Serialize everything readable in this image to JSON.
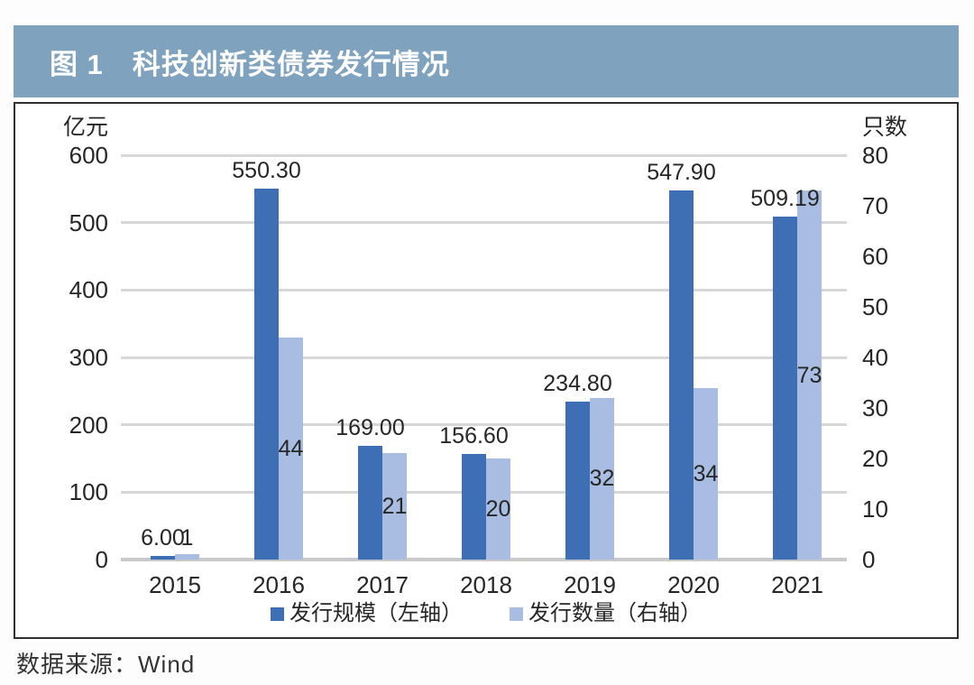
{
  "title": "图 1　科技创新类债券发行情况",
  "source": "数据来源：Wind",
  "colors": {
    "title_bar_bg": "#7FA3BF",
    "title_text": "#ffffff",
    "box_border": "#2f2f2f",
    "gridline": "#d7d7d7",
    "baseline": "#c9c9c9",
    "text": "#262626",
    "scale_bar": "#3E6FB4",
    "count_bar": "#A9BCE1"
  },
  "chart_data": {
    "type": "bar",
    "title": "图 1　科技创新类债券发行情况",
    "categories": [
      "2015",
      "2016",
      "2017",
      "2018",
      "2019",
      "2020",
      "2021"
    ],
    "series": [
      {
        "name": "发行规模（左轴）",
        "axis": "left",
        "values": [
          6.0,
          550.3,
          169.0,
          156.6,
          234.8,
          547.9,
          509.19
        ],
        "labels": [
          "6.00",
          "550.30",
          "169.00",
          "156.60",
          "234.80",
          "547.90",
          "509.19"
        ],
        "color": "#3E6FB4"
      },
      {
        "name": "发行数量（右轴）",
        "axis": "right",
        "values": [
          1,
          44,
          21,
          20,
          32,
          34,
          73
        ],
        "labels": [
          "1",
          "44",
          "21",
          "20",
          "32",
          "34",
          "73"
        ],
        "color": "#A9BCE1"
      }
    ],
    "left_axis": {
      "unit": "亿元",
      "min": 0,
      "max": 600,
      "step": 100,
      "ticks": [
        "0",
        "100",
        "200",
        "300",
        "400",
        "500",
        "600"
      ]
    },
    "right_axis": {
      "unit": "只数",
      "min": 0,
      "max": 80,
      "step": 10,
      "ticks": [
        "0",
        "10",
        "20",
        "30",
        "40",
        "50",
        "60",
        "70",
        "80"
      ]
    },
    "grid": "horizontal",
    "legend_position": "bottom",
    "source": "数据来源：Wind"
  }
}
